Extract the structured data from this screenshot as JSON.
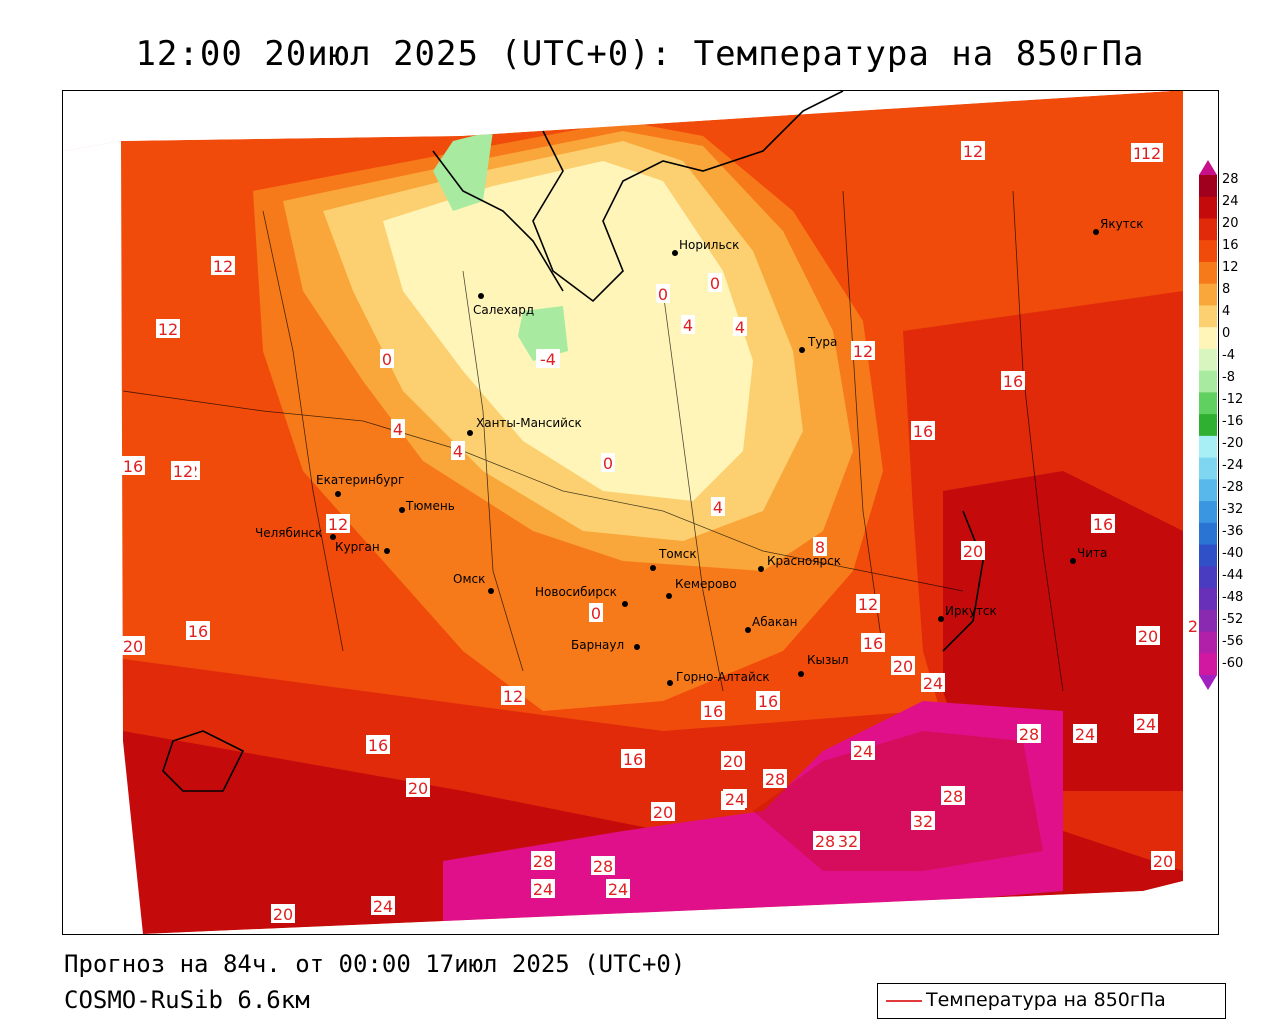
{
  "title": "12:00 20июл 2025 (UTC+0): Температура на 850гПа",
  "footer": {
    "forecast": "Прогноз на 84ч. от 00:00 17июл 2025 (UTC+0)",
    "model": "COSMO-RuSib 6.6км"
  },
  "legend": {
    "label": "Температура на 850гПа",
    "line_color": "#e03a3a"
  },
  "colorbar": {
    "ticks": [
      "28",
      "24",
      "20",
      "16",
      "12",
      "8",
      "4",
      "0",
      "-4",
      "-8",
      "-12",
      "-16",
      "-20",
      "-24",
      "-28",
      "-32",
      "-36",
      "-40",
      "-44",
      "-48",
      "-52",
      "-56",
      "-60"
    ],
    "colors": [
      "#a0001e",
      "#c40a0a",
      "#e02a0a",
      "#f04b0a",
      "#f77a1a",
      "#f9a63a",
      "#fcd070",
      "#fff5b8",
      "#d8f5c0",
      "#a8eaa0",
      "#60d060",
      "#30b030",
      "#a8eef5",
      "#7fd6f0",
      "#58b8ec",
      "#3a96e0",
      "#2a74d4",
      "#3050c8",
      "#4a3cc0",
      "#6830b8",
      "#8a2ab0",
      "#b020a8",
      "#d018a0"
    ]
  },
  "cities": [
    {
      "name": "Норильск"
    },
    {
      "name": "Салехард"
    },
    {
      "name": "Якутск"
    },
    {
      "name": "Тура"
    },
    {
      "name": "Ханты-Мансийск"
    },
    {
      "name": "Екатеринбург"
    },
    {
      "name": "Тюмень"
    },
    {
      "name": "Челябинск"
    },
    {
      "name": "Курган"
    },
    {
      "name": "Омск"
    },
    {
      "name": "Новосибирск"
    },
    {
      "name": "Томск"
    },
    {
      "name": "Красноярск"
    },
    {
      "name": "Кемерово"
    },
    {
      "name": "Абакан"
    },
    {
      "name": "Барнаул"
    },
    {
      "name": "Горно-Алтайск"
    },
    {
      "name": "Кызыл"
    },
    {
      "name": "Иркутск"
    },
    {
      "name": "Чита"
    }
  ],
  "isotherm_labels": [
    "12",
    "12",
    "12",
    "12",
    "12",
    "12",
    "12",
    "12",
    "12",
    "12",
    "12",
    "16",
    "16",
    "16",
    "16",
    "16",
    "16",
    "16",
    "16",
    "16",
    "16",
    "20",
    "20",
    "20",
    "20",
    "20",
    "20",
    "20",
    "20",
    "20",
    "20",
    "24",
    "24",
    "24",
    "24",
    "24",
    "24",
    "24",
    "24",
    "24",
    "28",
    "28",
    "28",
    "28",
    "28",
    "28",
    "32",
    "32",
    "4",
    "4",
    "4",
    "4",
    "8",
    "0",
    "0",
    "0",
    "0",
    "0",
    "-4",
    "4"
  ]
}
